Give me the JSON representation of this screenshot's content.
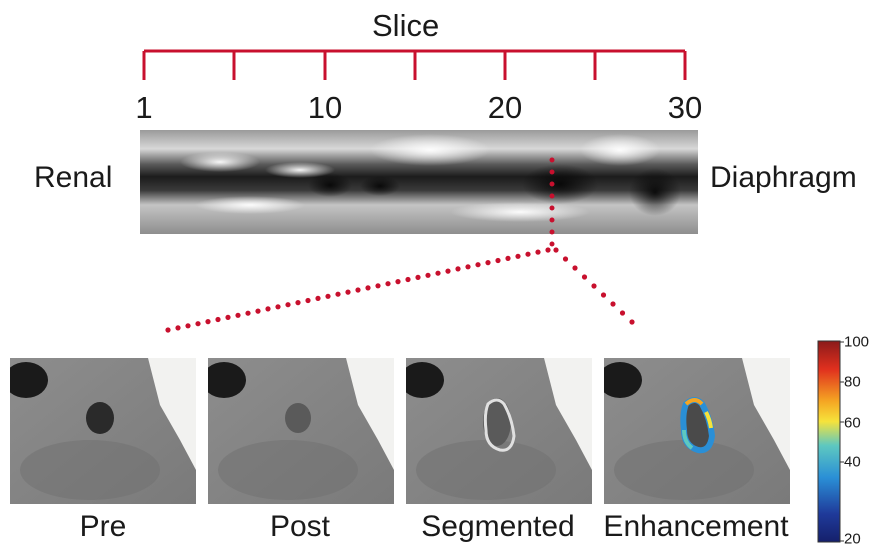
{
  "slice_axis": {
    "title": "Slice",
    "tick_labels": [
      "1",
      "10",
      "20",
      "30"
    ]
  },
  "strip": {
    "left_label": "Renal",
    "right_label": "Diaphragm"
  },
  "panels": [
    {
      "label": "Pre"
    },
    {
      "label": "Post"
    },
    {
      "label": "Segmented"
    },
    {
      "label": "Enhancement"
    }
  ],
  "colorbar": {
    "tick_labels": [
      "100",
      "80",
      "60",
      "40",
      "20"
    ],
    "colors": [
      "#8b1a1a",
      "#e0301e",
      "#f5a623",
      "#f6e33b",
      "#5ec8c0",
      "#2a8fd6",
      "#1f3a9a",
      "#15206b"
    ]
  },
  "colors": {
    "axis_red": "#c8102e",
    "dot_red": "#c8102e"
  }
}
